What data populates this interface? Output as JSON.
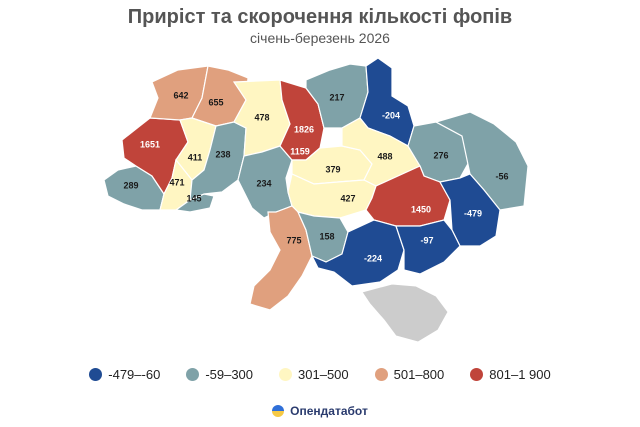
{
  "header": {
    "title": "Приріст та скорочення кількості фопів",
    "subtitle": "січень-березень 2026"
  },
  "colors": {
    "dark_blue": "#1f4b93",
    "gray_blue": "#7fa2a8",
    "light_yellow": "#fff6c2",
    "salmon": "#e0a07e",
    "red": "#c0443a",
    "crimea": "#cccccc"
  },
  "legend": [
    {
      "label": "-479–-60",
      "class": "dark_blue"
    },
    {
      "label": "-59–300",
      "class": "gray_blue"
    },
    {
      "label": "301–500",
      "class": "light_yellow"
    },
    {
      "label": "501–800",
      "class": "salmon"
    },
    {
      "label": "801–1 900",
      "class": "red"
    }
  ],
  "regions": [
    {
      "id": "zakarpattia",
      "value": "289",
      "class": "gray_blue"
    },
    {
      "id": "lviv",
      "value": "1651",
      "class": "red"
    },
    {
      "id": "volyn",
      "value": "642",
      "class": "salmon"
    },
    {
      "id": "rivne",
      "value": "655",
      "class": "salmon"
    },
    {
      "id": "ternopil",
      "value": "411",
      "class": "light_yellow"
    },
    {
      "id": "ivano-frankivsk",
      "value": "471",
      "class": "light_yellow"
    },
    {
      "id": "chernivtsi",
      "value": "145",
      "class": "gray_blue"
    },
    {
      "id": "khmelnytskyi",
      "value": "238",
      "class": "gray_blue"
    },
    {
      "id": "zhytomyr",
      "value": "478",
      "class": "light_yellow"
    },
    {
      "id": "vinnytsia",
      "value": "234",
      "class": "gray_blue"
    },
    {
      "id": "kyiv-city",
      "value": "1826",
      "class": "red"
    },
    {
      "id": "kyiv-oblast",
      "value": "1159",
      "class": "red"
    },
    {
      "id": "chernihiv",
      "value": "217",
      "class": "gray_blue"
    },
    {
      "id": "sumy",
      "value": "-204",
      "class": "dark_blue"
    },
    {
      "id": "cherkasy",
      "value": "379",
      "class": "light_yellow"
    },
    {
      "id": "poltava",
      "value": "488",
      "class": "light_yellow"
    },
    {
      "id": "kharkiv",
      "value": "276",
      "class": "gray_blue"
    },
    {
      "id": "luhansk",
      "value": "-56",
      "class": "gray_blue"
    },
    {
      "id": "kirovohrad",
      "value": "427",
      "class": "light_yellow"
    },
    {
      "id": "dnipropetrovsk",
      "value": "1450",
      "class": "red"
    },
    {
      "id": "donetsk",
      "value": "-479",
      "class": "dark_blue"
    },
    {
      "id": "odesa",
      "value": "775",
      "class": "salmon"
    },
    {
      "id": "mykolaiv",
      "value": "158",
      "class": "gray_blue"
    },
    {
      "id": "kherson",
      "value": "-224",
      "class": "dark_blue"
    },
    {
      "id": "zaporizhzhia",
      "value": "-97",
      "class": "dark_blue"
    }
  ],
  "brand": {
    "name": "Опендатабот"
  }
}
